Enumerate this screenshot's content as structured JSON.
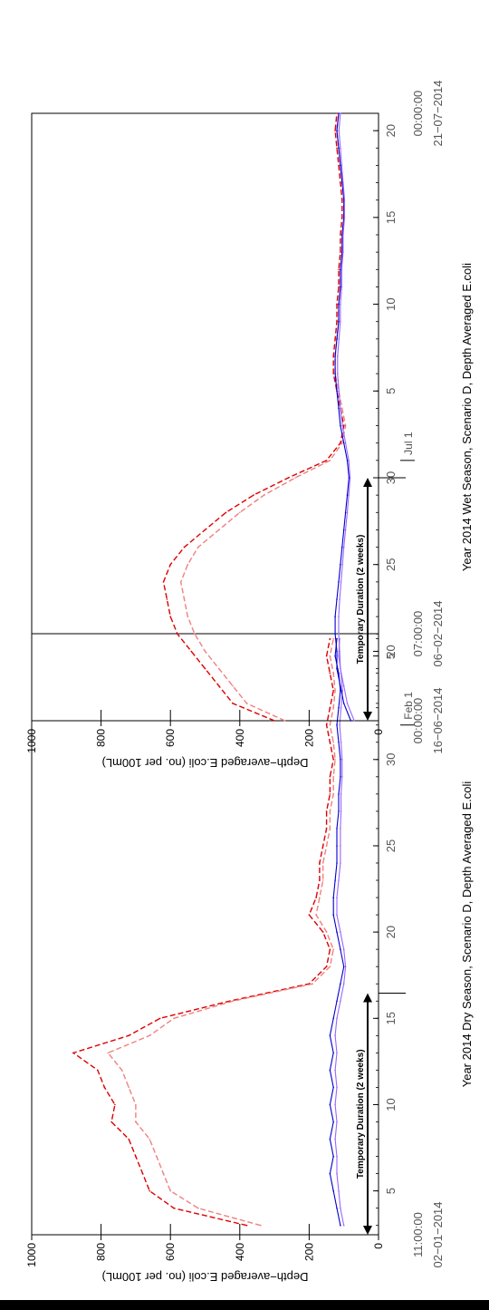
{
  "chart_data": [
    {
      "type": "line",
      "caption": "Year 2014 Dry Season, Scenario D, Depth Averaged E.coli",
      "ylabel": "Depth−averaged E.coli (no. per 100mL)",
      "ylim": [
        0,
        1000
      ],
      "yticks": [
        "0",
        "200",
        "400",
        "600",
        "800",
        "1000"
      ],
      "xlim": [
        1.458,
        36.292
      ],
      "xticks": [
        {
          "x": 4,
          "label": "5"
        },
        {
          "x": 9,
          "label": "10"
        },
        {
          "x": 14,
          "label": "15"
        },
        {
          "x": 19,
          "label": "20"
        },
        {
          "x": 24,
          "label": "25"
        },
        {
          "x": 29,
          "label": "30"
        },
        {
          "x": 35,
          "label": "5"
        }
      ],
      "start_label": [
        "11:00:00",
        "02−01−2014"
      ],
      "end_label": [
        "07:00:00",
        "06−02−2014"
      ],
      "month_marker": {
        "x": 31,
        "label": "Feb 1"
      },
      "annotation": {
        "text": "Temporary Duration (2 weeks)",
        "x0": 1.458,
        "x1": 15.458
      },
      "series": [
        {
          "color": "#dd0000",
          "style": "dashed",
          "x": [
            2,
            3,
            4,
            5,
            6,
            7,
            8,
            9,
            10,
            11,
            12,
            13,
            14,
            15,
            16,
            17,
            18,
            19,
            20,
            21,
            22,
            23,
            24,
            25,
            26,
            27,
            28,
            29,
            30,
            31,
            32,
            33,
            34,
            35,
            36
          ],
          "values": [
            380,
            590,
            660,
            680,
            700,
            720,
            770,
            760,
            790,
            810,
            880,
            720,
            630,
            430,
            200,
            150,
            140,
            160,
            200,
            180,
            170,
            170,
            160,
            150,
            150,
            140,
            140,
            130,
            140,
            150,
            140,
            130,
            140,
            150,
            140
          ]
        },
        {
          "color": "#f08080",
          "style": "dashed",
          "x": [
            2,
            3,
            4,
            5,
            6,
            7,
            8,
            9,
            10,
            11,
            12,
            13,
            14,
            15,
            16,
            17,
            18,
            19,
            20,
            21,
            22,
            23,
            24,
            25,
            26,
            27,
            28,
            29,
            30,
            31,
            32,
            33,
            34,
            35,
            36
          ],
          "values": [
            340,
            520,
            600,
            620,
            640,
            660,
            700,
            700,
            720,
            740,
            780,
            660,
            590,
            420,
            190,
            140,
            130,
            150,
            180,
            170,
            160,
            160,
            150,
            140,
            140,
            130,
            130,
            125,
            130,
            140,
            130,
            125,
            130,
            140,
            130
          ]
        },
        {
          "color": "#0000cc",
          "style": "solid",
          "x": [
            2,
            3,
            4,
            5,
            6,
            7,
            8,
            9,
            10,
            11,
            12,
            13,
            14,
            15,
            16,
            17,
            18,
            19,
            20,
            21,
            22,
            23,
            24,
            25,
            26,
            27,
            28,
            29,
            30,
            31,
            32,
            33,
            34,
            35,
            36
          ],
          "values": [
            110,
            120,
            130,
            140,
            130,
            140,
            130,
            140,
            130,
            140,
            130,
            140,
            130,
            120,
            110,
            100,
            110,
            120,
            130,
            130,
            125,
            120,
            120,
            120,
            115,
            115,
            110,
            110,
            115,
            120,
            115,
            110,
            115,
            125,
            120
          ]
        },
        {
          "color": "#9966ff",
          "style": "solid",
          "x": [
            2,
            3,
            4,
            5,
            6,
            7,
            8,
            9,
            10,
            11,
            12,
            13,
            14,
            15,
            16,
            17,
            18,
            19,
            20,
            21,
            22,
            23,
            24,
            25,
            26,
            27,
            28,
            29,
            30,
            31,
            32,
            33,
            34,
            35,
            36
          ],
          "values": [
            100,
            110,
            115,
            120,
            120,
            125,
            120,
            125,
            120,
            125,
            120,
            125,
            120,
            110,
            100,
            95,
            100,
            110,
            120,
            120,
            115,
            110,
            110,
            110,
            108,
            108,
            105,
            105,
            108,
            112,
            108,
            104,
            108,
            115,
            112
          ]
        }
      ]
    },
    {
      "type": "line",
      "caption": "Year 2014 Wet Season, Scenario D, Depth Averaged E.coli",
      "ylabel": "Depth−averaged E.coli (no. per 100mL)",
      "ylim": [
        0,
        1000
      ],
      "yticks": [
        "0",
        "200",
        "400",
        "600",
        "800",
        "1000"
      ],
      "xlim": [
        16,
        51
      ],
      "xticks": [
        {
          "x": 20,
          "label": "20"
        },
        {
          "x": 25,
          "label": "25"
        },
        {
          "x": 30,
          "label": "30"
        },
        {
          "x": 35,
          "label": "5"
        },
        {
          "x": 40,
          "label": "10"
        },
        {
          "x": 45,
          "label": "15"
        },
        {
          "x": 50,
          "label": "20"
        }
      ],
      "start_label": [
        "00:00:00",
        "16−06−2014"
      ],
      "end_label": [
        "00:00:00",
        "21−07−2014"
      ],
      "month_marker": {
        "x": 31,
        "label": "Jul 1"
      },
      "annotation": {
        "text": "Temporary Duration (2 weeks)",
        "x0": 16,
        "x1": 30
      },
      "series": [
        {
          "color": "#dd0000",
          "style": "dashed",
          "x": [
            16,
            17,
            18,
            19,
            20,
            21,
            22,
            23,
            24,
            25,
            26,
            27,
            28,
            29,
            30,
            31,
            32,
            33,
            34,
            35,
            36,
            37,
            38,
            39,
            40,
            41,
            42,
            43,
            44,
            45,
            46,
            47,
            48,
            49,
            50,
            51
          ],
          "values": [
            300,
            420,
            460,
            500,
            540,
            580,
            600,
            610,
            620,
            600,
            560,
            500,
            440,
            360,
            260,
            150,
            110,
            100,
            110,
            120,
            130,
            130,
            125,
            120,
            120,
            115,
            115,
            110,
            110,
            105,
            105,
            110,
            115,
            120,
            125,
            120
          ]
        },
        {
          "color": "#f08080",
          "style": "dashed",
          "x": [
            16,
            17,
            18,
            19,
            20,
            21,
            22,
            23,
            24,
            25,
            26,
            27,
            28,
            29,
            30,
            31,
            32,
            33,
            34,
            35,
            36,
            37,
            38,
            39,
            40,
            41,
            42,
            43,
            44,
            45,
            46,
            47,
            48,
            49,
            50,
            51
          ],
          "values": [
            270,
            380,
            420,
            460,
            500,
            530,
            550,
            560,
            570,
            550,
            520,
            460,
            400,
            330,
            240,
            140,
            105,
            95,
            105,
            115,
            125,
            125,
            120,
            115,
            115,
            110,
            110,
            105,
            105,
            100,
            100,
            105,
            110,
            115,
            120,
            115
          ]
        },
        {
          "color": "#0000cc",
          "style": "solid",
          "x": [
            16,
            17,
            18,
            19,
            20,
            21,
            22,
            23,
            24,
            25,
            26,
            27,
            28,
            29,
            30,
            31,
            32,
            33,
            34,
            35,
            36,
            37,
            38,
            39,
            40,
            41,
            42,
            43,
            44,
            45,
            46,
            47,
            48,
            49,
            50,
            51
          ],
          "values": [
            80,
            100,
            110,
            120,
            120,
            125,
            125,
            120,
            115,
            110,
            105,
            100,
            95,
            90,
            85,
            90,
            100,
            110,
            115,
            120,
            125,
            125,
            120,
            115,
            115,
            110,
            110,
            105,
            105,
            100,
            100,
            105,
            110,
            115,
            120,
            115
          ]
        },
        {
          "color": "#9966ff",
          "style": "solid",
          "x": [
            16,
            17,
            18,
            19,
            20,
            21,
            22,
            23,
            24,
            25,
            26,
            27,
            28,
            29,
            30,
            31,
            32,
            33,
            34,
            35,
            36,
            37,
            38,
            39,
            40,
            41,
            42,
            43,
            44,
            45,
            46,
            47,
            48,
            49,
            50,
            51
          ],
          "values": [
            70,
            90,
            100,
            110,
            112,
            115,
            115,
            112,
            108,
            104,
            100,
            95,
            90,
            86,
            82,
            86,
            95,
            104,
            110,
            114,
            118,
            118,
            114,
            110,
            110,
            106,
            106,
            102,
            102,
            98,
            98,
            102,
            106,
            110,
            114,
            110
          ]
        }
      ]
    }
  ]
}
